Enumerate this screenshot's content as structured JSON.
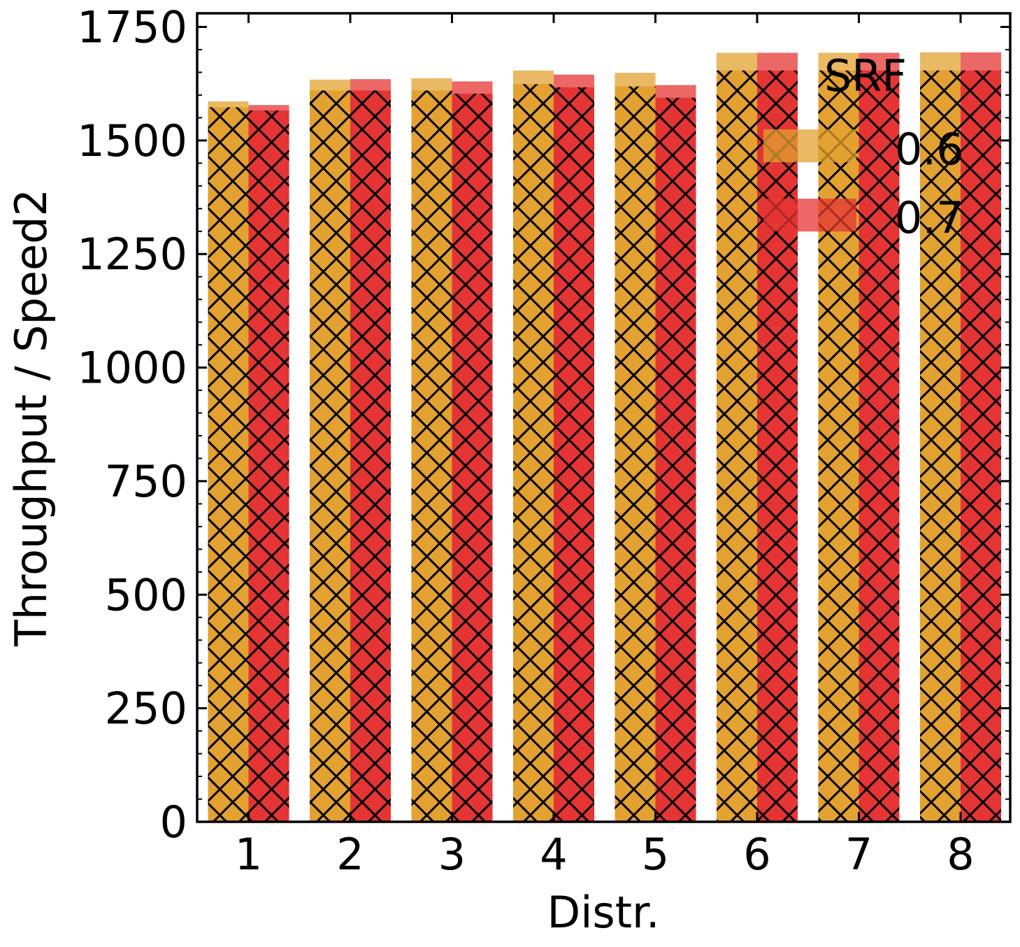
{
  "chart_data": {
    "type": "bar",
    "title": "",
    "xlabel": "Distr.",
    "ylabel": "Throughput / Speed2",
    "categories": [
      "1",
      "2",
      "3",
      "4",
      "5",
      "6",
      "7",
      "8"
    ],
    "ylim": [
      0,
      1780
    ],
    "yticks": [
      0,
      250,
      500,
      750,
      1000,
      1250,
      1500,
      1750
    ],
    "ytick_labels": [
      "0",
      "250",
      "500",
      "750",
      "1000",
      "1250",
      "1500",
      "1750"
    ],
    "legend": {
      "title": "SRF",
      "placement": "top-right"
    },
    "series": [
      {
        "name": "0.6",
        "color": "#e2a130",
        "values": [
          1573,
          1610,
          1610,
          1624,
          1619,
          1654,
          1654,
          1654
        ],
        "upper_values": [
          1586,
          1634,
          1637,
          1654,
          1649,
          1693,
          1693,
          1694
        ]
      },
      {
        "name": "0.7",
        "color": "#e43534",
        "values": [
          1566,
          1610,
          1603,
          1617,
          1594,
          1654,
          1654,
          1654
        ],
        "upper_values": [
          1578,
          1635,
          1630,
          1645,
          1622,
          1693,
          1693,
          1694
        ]
      }
    ],
    "hatch": "cross",
    "grid": false
  }
}
